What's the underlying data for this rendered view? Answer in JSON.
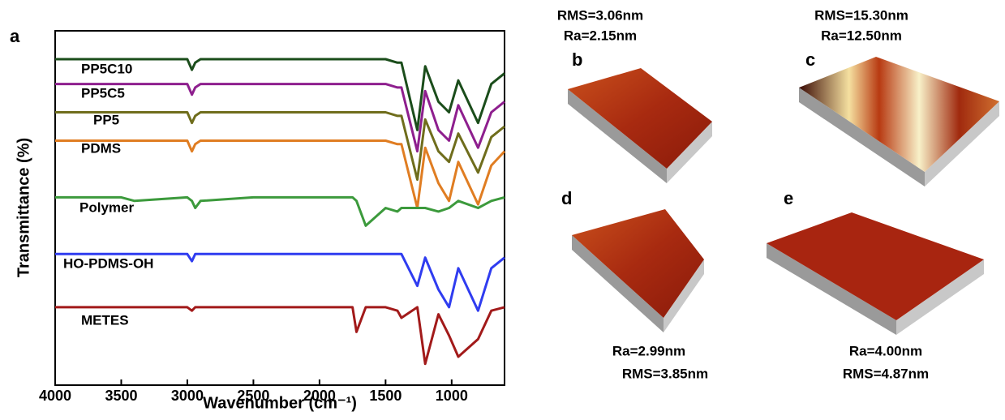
{
  "chart_data": {
    "type": "line",
    "panel_label": "a",
    "x_label": "Wavenumber (cm⁻¹)",
    "y_label": "Transmittance (%)",
    "xlim": [
      4000,
      600
    ],
    "ylim": [
      0,
      100
    ],
    "xticks": [
      4000,
      3500,
      3000,
      2500,
      2000,
      1500,
      1000
    ],
    "x": [
      4000,
      3500,
      3400,
      3000,
      2965,
      2940,
      2900,
      2500,
      2000,
      1750,
      1720,
      1650,
      1500,
      1410,
      1380,
      1260,
      1200,
      1100,
      1020,
      950,
      800,
      700,
      600
    ],
    "series": [
      {
        "name": "PP5C10",
        "color": "#1b4d1b",
        "values": [
          92,
          92,
          92,
          92,
          89,
          91,
          92,
          92,
          92,
          92,
          92,
          92,
          92,
          91,
          91,
          72,
          90,
          80,
          77,
          86,
          74,
          85,
          88
        ]
      },
      {
        "name": "PP5C5",
        "color": "#8e1f8e",
        "values": [
          85,
          85,
          85,
          85,
          82,
          84,
          85,
          85,
          85,
          85,
          85,
          85,
          85,
          84,
          84,
          66,
          83,
          72,
          69,
          79,
          67,
          77,
          80
        ]
      },
      {
        "name": "PP5",
        "color": "#6f6d1c",
        "values": [
          77,
          77,
          77,
          77,
          74,
          76,
          77,
          77,
          77,
          77,
          77,
          77,
          77,
          76,
          76,
          58,
          75,
          66,
          63,
          71,
          60,
          70,
          73
        ]
      },
      {
        "name": "PDMS",
        "color": "#e07d22",
        "values": [
          69,
          69,
          69,
          69,
          66,
          68,
          69,
          69,
          69,
          69,
          69,
          69,
          69,
          68,
          68,
          50,
          67,
          57,
          52,
          63,
          51,
          62,
          66
        ]
      },
      {
        "name": "Polymer",
        "color": "#3c9a3c",
        "values": [
          53,
          53,
          52,
          53,
          52,
          50,
          52,
          53,
          53,
          53,
          52,
          45,
          50,
          49,
          50,
          50,
          50,
          49,
          50,
          52,
          50,
          52,
          53
        ]
      },
      {
        "name": "HO-PDMS-OH",
        "color": "#2f3cf0",
        "values": [
          37,
          37,
          37,
          37,
          35,
          37,
          37,
          37,
          37,
          37,
          37,
          37,
          37,
          37,
          37,
          28,
          36,
          27,
          22,
          33,
          21,
          33,
          36
        ]
      },
      {
        "name": "METES",
        "color": "#a21a1a",
        "values": [
          22,
          22,
          22,
          22,
          21,
          22,
          22,
          22,
          22,
          22,
          15,
          22,
          22,
          21,
          19,
          22,
          6,
          20,
          14,
          8,
          13,
          21,
          22
        ]
      }
    ]
  },
  "afm_images": [
    {
      "label": "b",
      "line1": "RMS=3.06nm",
      "line2": "Ra=2.15nm"
    },
    {
      "label": "c",
      "line1": "RMS=15.30nm",
      "line2": "Ra=12.50nm"
    },
    {
      "label": "d",
      "line1": "Ra=2.99nm",
      "line2": "RMS=3.85nm"
    },
    {
      "label": "e",
      "line1": "Ra=4.00nm",
      "line2": "RMS=4.87nm"
    }
  ]
}
